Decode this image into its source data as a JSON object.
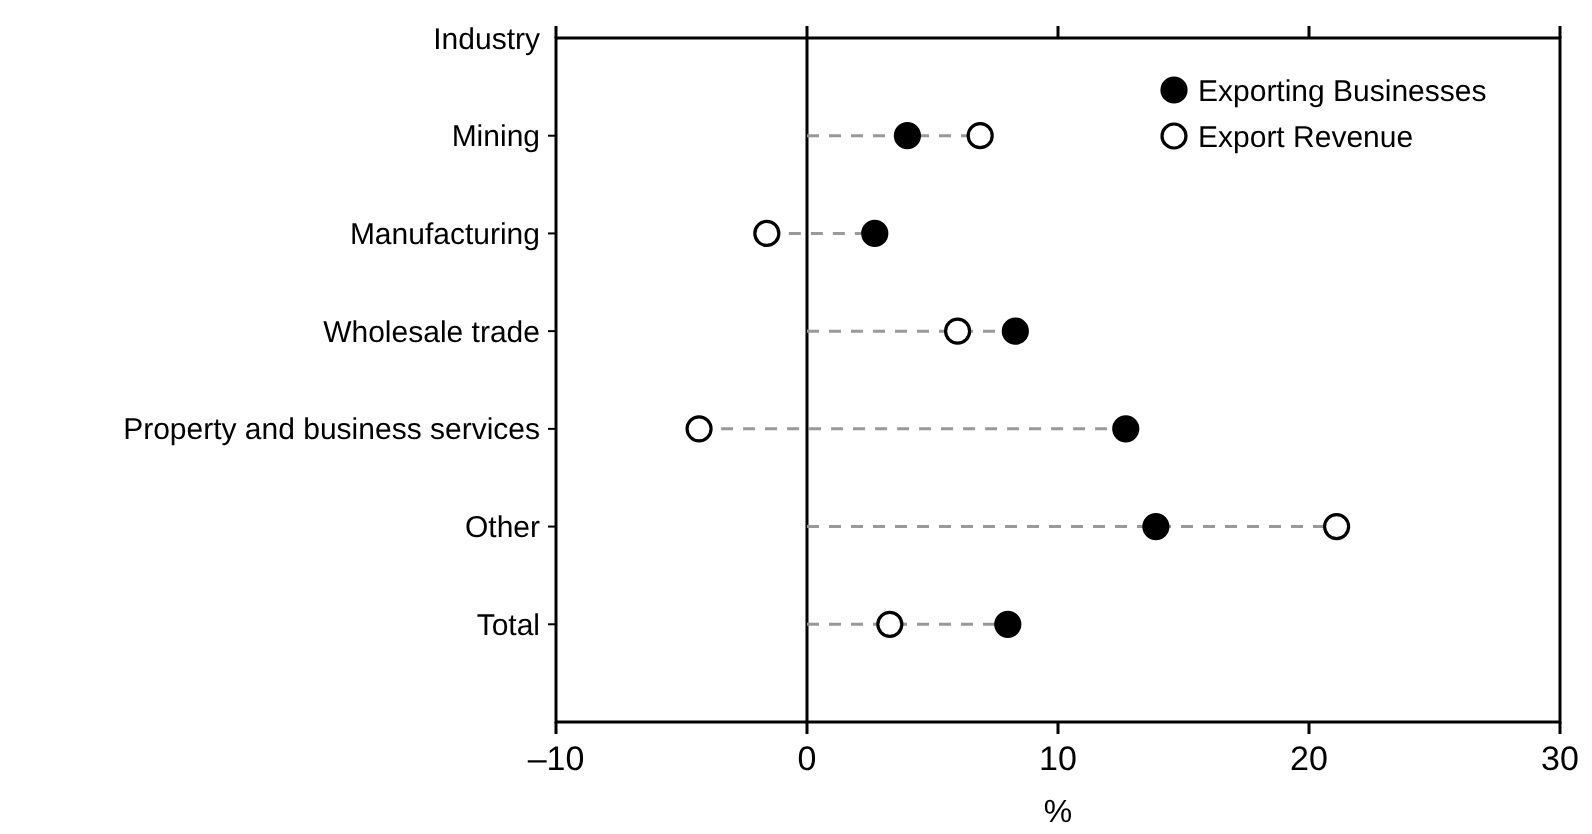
{
  "chart_data": {
    "type": "lollipop",
    "orientation": "horizontal",
    "ylabel": "Industry",
    "xlabel": "%",
    "categories": [
      "Mining",
      "Manufacturing",
      "Wholesale trade",
      "Property and business services",
      "Other",
      "Total"
    ],
    "series": [
      {
        "name": "Exporting Businesses",
        "color": "#000000",
        "values": [
          4.0,
          2.7,
          8.3,
          12.7,
          13.9,
          8.0
        ]
      },
      {
        "name": "Export Revenue",
        "color": "#ffffff",
        "values": [
          6.9,
          -1.6,
          6.0,
          -4.3,
          21.1,
          3.3
        ]
      }
    ],
    "xlim": [
      -10,
      30
    ],
    "xticks": [
      {
        "value": -10,
        "label": "–10"
      },
      0,
      10,
      20,
      30
    ],
    "legend": "top right",
    "marker": "circle",
    "line_style": "dashed",
    "ref_lines": [
      {
        "axis": "x",
        "value": 0,
        "color": "#000000"
      }
    ]
  }
}
